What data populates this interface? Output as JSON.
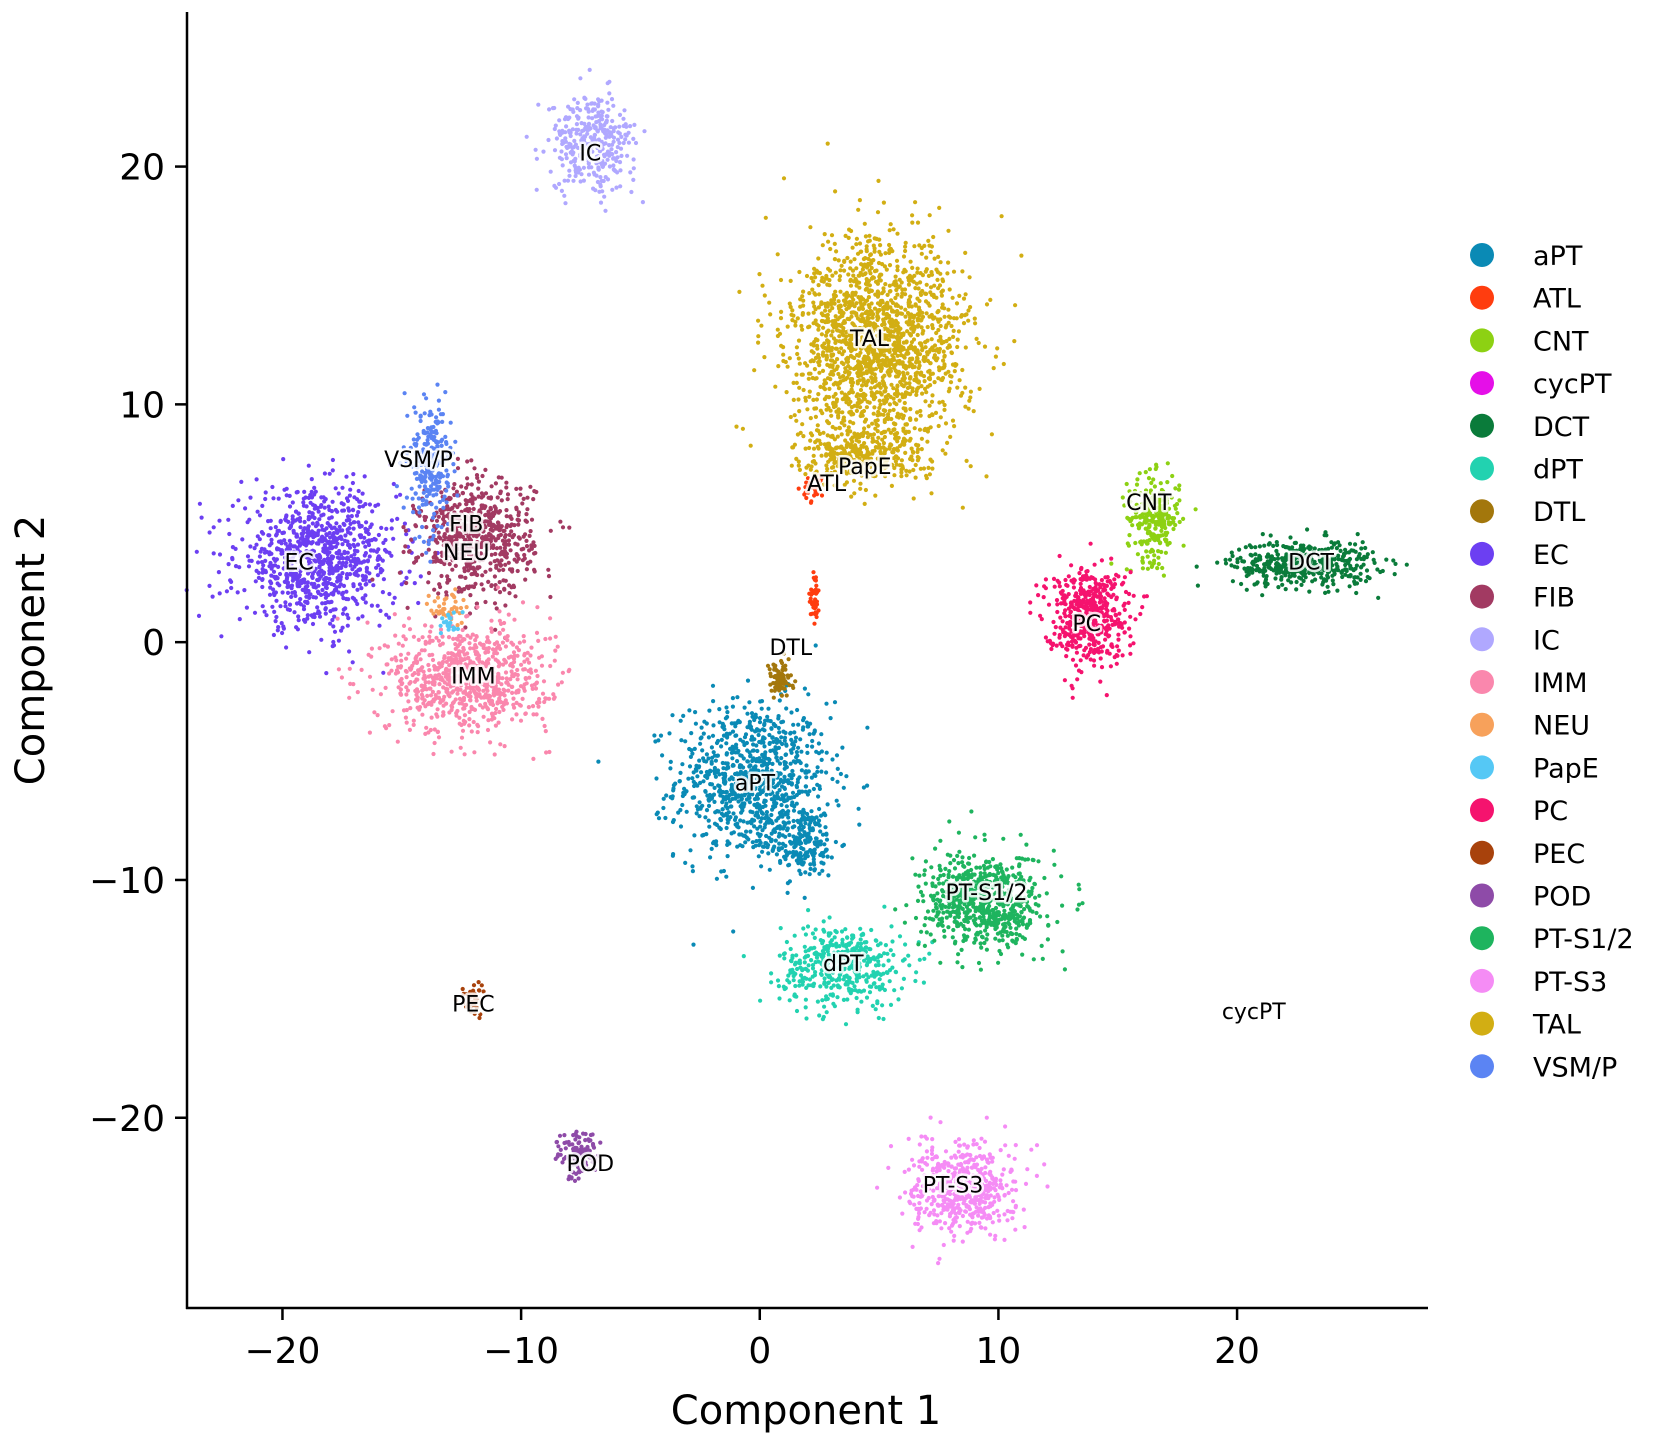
{
  "chart_data": {
    "type": "scatter",
    "title": "",
    "xlabel": "Component 1",
    "ylabel": "Component 2",
    "xlim": [
      -24,
      28
    ],
    "ylim": [
      -28,
      26.5
    ],
    "xticks": [
      -20,
      -10,
      0,
      10,
      20
    ],
    "xtick_labels": [
      "−20",
      "−10",
      "0",
      "10",
      "20"
    ],
    "yticks": [
      -20,
      -10,
      0,
      10,
      20
    ],
    "ytick_labels": [
      "−20",
      "−10",
      "0",
      "10",
      "20"
    ],
    "grid": false,
    "legend_position": "right",
    "series": [
      {
        "name": "aPT",
        "color": "#0a8ab5",
        "label_pos": [
          -0.2,
          -5.9
        ],
        "clusters": [
          {
            "cx": -0.3,
            "cy": -5.8,
            "rx": 3.2,
            "ry": 3.3,
            "n": 900
          },
          {
            "cx": 1.8,
            "cy": -8.4,
            "rx": 1.5,
            "ry": 1.5,
            "n": 200
          }
        ]
      },
      {
        "name": "ATL",
        "color": "#ff3d0f",
        "label_pos": [
          2.8,
          6.7
        ],
        "clusters": [
          {
            "cx": 2.3,
            "cy": 6.5,
            "rx": 0.5,
            "ry": 0.6,
            "n": 30
          },
          {
            "cx": 2.3,
            "cy": 2.0,
            "rx": 0.2,
            "ry": 1.2,
            "n": 40
          }
        ]
      },
      {
        "name": "CNT",
        "color": "#8dd113",
        "label_pos": [
          16.3,
          5.9
        ],
        "clusters": [
          {
            "cx": 16.5,
            "cy": 5.2,
            "rx": 1.1,
            "ry": 1.8,
            "n": 250
          }
        ]
      },
      {
        "name": "cycPT",
        "color": "#e50fe8",
        "label_pos": [
          20.7,
          -15.5
        ],
        "clusters": []
      },
      {
        "name": "DCT",
        "color": "#0a7b3a",
        "label_pos": [
          23.1,
          3.4
        ],
        "clusters": [
          {
            "cx": 22.8,
            "cy": 3.3,
            "rx": 3.0,
            "ry": 1.0,
            "n": 450
          }
        ]
      },
      {
        "name": "dPT",
        "color": "#22d2b0",
        "label_pos": [
          3.5,
          -13.5
        ],
        "clusters": [
          {
            "cx": 3.5,
            "cy": -13.6,
            "rx": 2.6,
            "ry": 1.7,
            "n": 450
          }
        ]
      },
      {
        "name": "DTL",
        "color": "#a3770c",
        "label_pos": [
          1.3,
          -0.2
        ],
        "clusters": [
          {
            "cx": 0.8,
            "cy": -1.6,
            "rx": 0.6,
            "ry": 0.8,
            "n": 80
          }
        ]
      },
      {
        "name": "EC",
        "color": "#6c3ff2",
        "label_pos": [
          -19.3,
          3.4
        ],
        "clusters": [
          {
            "cx": -18.5,
            "cy": 3.5,
            "rx": 3.3,
            "ry": 2.8,
            "n": 900
          }
        ]
      },
      {
        "name": "FIB",
        "color": "#a23a62",
        "label_pos": [
          -12.3,
          5.0
        ],
        "clusters": [
          {
            "cx": -11.9,
            "cy": 4.4,
            "rx": 2.4,
            "ry": 2.4,
            "n": 650
          }
        ]
      },
      {
        "name": "IC",
        "color": "#b0a8ff",
        "label_pos": [
          -7.1,
          20.6
        ],
        "clusters": [
          {
            "cx": -7.0,
            "cy": 21.0,
            "rx": 1.8,
            "ry": 2.0,
            "n": 350
          }
        ]
      },
      {
        "name": "IMM",
        "color": "#fa87ad",
        "label_pos": [
          -12.0,
          -1.4
        ],
        "clusters": [
          {
            "cx": -12.2,
            "cy": -1.5,
            "rx": 3.4,
            "ry": 2.3,
            "n": 800
          }
        ]
      },
      {
        "name": "NEU",
        "color": "#f7a15b",
        "label_pos": [
          -12.3,
          3.8
        ],
        "clusters": [
          {
            "cx": -13.1,
            "cy": 1.4,
            "rx": 0.7,
            "ry": 0.8,
            "n": 40
          }
        ]
      },
      {
        "name": "PapE",
        "color": "#55c8f5",
        "label_pos": [
          4.4,
          7.4
        ],
        "clusters": [
          {
            "cx": -13.0,
            "cy": 0.8,
            "rx": 0.4,
            "ry": 0.5,
            "n": 20
          }
        ]
      },
      {
        "name": "PC",
        "color": "#f5136e",
        "label_pos": [
          13.7,
          0.8
        ],
        "clusters": [
          {
            "cx": 13.7,
            "cy": 1.2,
            "rx": 1.7,
            "ry": 2.0,
            "n": 500
          }
        ]
      },
      {
        "name": "PEC",
        "color": "#a8420c",
        "label_pos": [
          -12.0,
          -15.2
        ],
        "clusters": [
          {
            "cx": -12.0,
            "cy": -15.0,
            "rx": 0.5,
            "ry": 0.7,
            "n": 40
          }
        ]
      },
      {
        "name": "POD",
        "color": "#8e4ba8",
        "label_pos": [
          -7.1,
          -21.9
        ],
        "clusters": [
          {
            "cx": -7.6,
            "cy": -21.6,
            "rx": 0.9,
            "ry": 1.0,
            "n": 120
          }
        ]
      },
      {
        "name": "PT-S1/2",
        "color": "#1eb45e",
        "label_pos": [
          9.5,
          -10.5
        ],
        "clusters": [
          {
            "cx": 9.4,
            "cy": -10.9,
            "rx": 2.5,
            "ry": 2.0,
            "n": 700
          }
        ]
      },
      {
        "name": "PT-S3",
        "color": "#f58cf5",
        "label_pos": [
          8.1,
          -22.8
        ],
        "clusters": [
          {
            "cx": 8.5,
            "cy": -23.0,
            "rx": 2.2,
            "ry": 1.9,
            "n": 550
          }
        ]
      },
      {
        "name": "TAL",
        "color": "#d2ae13",
        "label_pos": [
          4.6,
          12.8
        ],
        "clusters": [
          {
            "cx": 5.0,
            "cy": 12.5,
            "rx": 3.7,
            "ry": 4.4,
            "n": 1700
          },
          {
            "cx": 4.2,
            "cy": 7.8,
            "rx": 2.5,
            "ry": 1.2,
            "n": 300
          }
        ]
      },
      {
        "name": "VSM/P",
        "color": "#5b84f3",
        "label_pos": [
          -14.3,
          7.7
        ],
        "clusters": [
          {
            "cx": -13.8,
            "cy": 7.4,
            "rx": 0.9,
            "ry": 2.6,
            "n": 250
          }
        ]
      }
    ]
  }
}
